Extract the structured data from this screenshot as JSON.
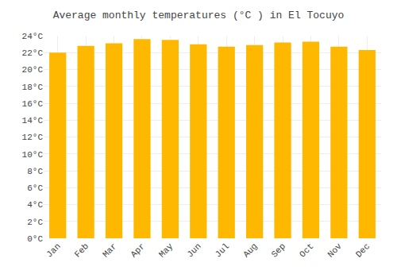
{
  "chart_data": {
    "type": "bar",
    "title": "Average monthly temperatures (°C ) in El Tocuyo",
    "categories": [
      "Jan",
      "Feb",
      "Mar",
      "Apr",
      "May",
      "Jun",
      "Jul",
      "Aug",
      "Sep",
      "Oct",
      "Nov",
      "Dec"
    ],
    "values": [
      22.0,
      22.8,
      23.1,
      23.6,
      23.5,
      23.0,
      22.7,
      22.9,
      23.2,
      23.3,
      22.7,
      22.3
    ],
    "color": "#FFB800",
    "ylim": [
      0,
      24
    ],
    "yticks": [
      {
        "value": 0,
        "label": "0°C"
      },
      {
        "value": 2,
        "label": "2°C"
      },
      {
        "value": 4,
        "label": "4°C"
      },
      {
        "value": 6,
        "label": "6°C"
      },
      {
        "value": 8,
        "label": "8°C"
      },
      {
        "value": 10,
        "label": "10°C"
      },
      {
        "value": 12,
        "label": "12°C"
      },
      {
        "value": 14,
        "label": "14°C"
      },
      {
        "value": 16,
        "label": "16°C"
      },
      {
        "value": 18,
        "label": "18°C"
      },
      {
        "value": 20,
        "label": "20°C"
      },
      {
        "value": 22,
        "label": "22°C"
      },
      {
        "value": 24,
        "label": "24°C"
      }
    ],
    "grid": true
  }
}
